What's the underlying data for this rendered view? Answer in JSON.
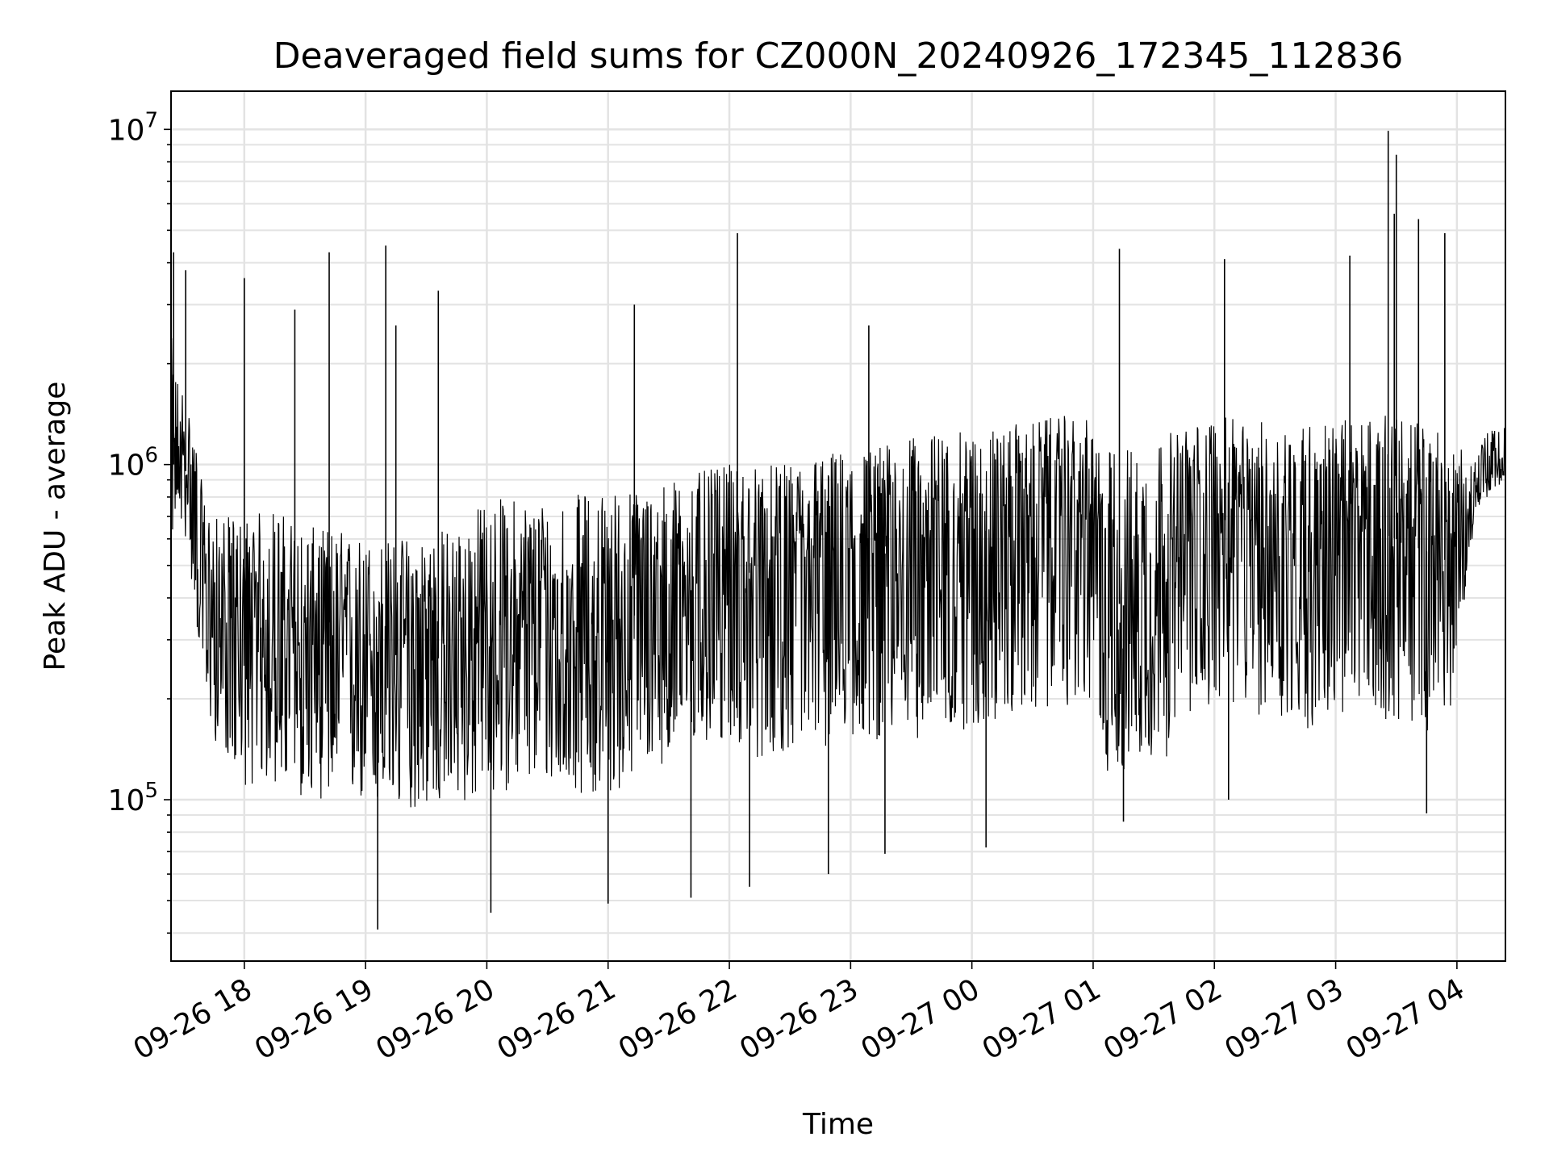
{
  "chart_data": {
    "type": "line",
    "title": "Deaveraged field sums for CZ000N_20240926_172345_112836",
    "xlabel": "Time",
    "ylabel": "Peak ADU - average",
    "xscale": "time",
    "yscale": "log",
    "grid": true,
    "grid_minor": true,
    "xlim": [
      "2024-09-26T17:23:45",
      "2024-09-27T04:24:00"
    ],
    "ylim": [
      33000,
      13000000
    ],
    "x_ticks": [
      "09-26 18",
      "09-26 19",
      "09-26 20",
      "09-26 21",
      "09-26 22",
      "09-26 23",
      "09-27 00",
      "09-27 01",
      "09-27 02",
      "09-27 03",
      "09-27 04"
    ],
    "y_ticks": [
      {
        "value": 100000,
        "base": "10",
        "exp": "5"
      },
      {
        "value": 1000000,
        "base": "10",
        "exp": "6"
      },
      {
        "value": 10000000,
        "base": "10",
        "exp": "7"
      }
    ],
    "line_color": "#000000",
    "series": [
      {
        "x": [
          "2024-09-26T17:23:45",
          "2024-09-26T17:25:00",
          "2024-09-26T17:30:00",
          "2024-09-26T17:35:00",
          "2024-09-26T17:40:00",
          "2024-09-26T17:45:00",
          "2024-09-26T17:50:00",
          "2024-09-26T18:00:00",
          "2024-09-26T18:15:00",
          "2024-09-26T18:30:00",
          "2024-09-26T18:45:00",
          "2024-09-26T19:00:00",
          "2024-09-26T19:15:00",
          "2024-09-26T19:30:00",
          "2024-09-26T19:45:00",
          "2024-09-26T20:00:00",
          "2024-09-26T20:15:00",
          "2024-09-26T20:30:00",
          "2024-09-26T20:45:00",
          "2024-09-26T21:00:00",
          "2024-09-26T21:15:00",
          "2024-09-26T21:30:00",
          "2024-09-26T21:45:00",
          "2024-09-26T22:00:00",
          "2024-09-26T22:15:00",
          "2024-09-26T22:30:00",
          "2024-09-26T22:45:00",
          "2024-09-26T23:00:00",
          "2024-09-26T23:15:00",
          "2024-09-26T23:30:00",
          "2024-09-26T23:45:00",
          "2024-09-27T00:00:00",
          "2024-09-27T00:15:00",
          "2024-09-27T00:30:00",
          "2024-09-27T00:45:00",
          "2024-09-27T01:00:00",
          "2024-09-27T01:05:00",
          "2024-09-27T01:15:00",
          "2024-09-27T01:30:00",
          "2024-09-27T01:45:00",
          "2024-09-27T02:00:00",
          "2024-09-27T02:15:00",
          "2024-09-27T02:30:00",
          "2024-09-27T02:45:00",
          "2024-09-27T03:00:00",
          "2024-09-27T03:15:00",
          "2024-09-27T03:30:00",
          "2024-09-27T03:45:00",
          "2024-09-27T04:00:00",
          "2024-09-27T04:05:00",
          "2024-09-27T04:10:00",
          "2024-09-27T04:15:00",
          "2024-09-27T04:24:00"
        ],
        "median": [
          900000,
          1000000,
          1000000,
          800000,
          400000,
          350000,
          330000,
          300000,
          310000,
          280000,
          290000,
          280000,
          270000,
          260000,
          270000,
          300000,
          330000,
          320000,
          310000,
          320000,
          360000,
          400000,
          430000,
          470000,
          450000,
          470000,
          480000,
          520000,
          540000,
          560000,
          600000,
          620000,
          650000,
          680000,
          720000,
          650000,
          400000,
          380000,
          420000,
          520000,
          700000,
          650000,
          620000,
          600000,
          620000,
          650000,
          600000,
          550000,
          500000,
          700000,
          850000,
          950000,
          1050000
        ],
        "low": [
          500000,
          700000,
          650000,
          400000,
          200000,
          150000,
          140000,
          110000,
          110000,
          100000,
          100000,
          95000,
          90000,
          95000,
          95000,
          100000,
          110000,
          110000,
          105000,
          100000,
          120000,
          130000,
          140000,
          150000,
          130000,
          140000,
          140000,
          150000,
          150000,
          150000,
          160000,
          160000,
          170000,
          180000,
          190000,
          190000,
          120000,
          120000,
          130000,
          140000,
          200000,
          180000,
          170000,
          160000,
          170000,
          180000,
          170000,
          160000,
          200000,
          500000,
          700000,
          800000,
          900000
        ],
        "high": [
          2500000,
          2000000,
          1700000,
          1300000,
          800000,
          700000,
          700000,
          700000,
          750000,
          650000,
          650000,
          600000,
          600000,
          650000,
          650000,
          800000,
          800000,
          800000,
          820000,
          850000,
          850000,
          900000,
          950000,
          1000000,
          1000000,
          1000000,
          1100000,
          1100000,
          1150000,
          1200000,
          1250000,
          1250000,
          1300000,
          1350000,
          1400000,
          1350000,
          1100000,
          1150000,
          1200000,
          1300000,
          1400000,
          1350000,
          1350000,
          1350000,
          1350000,
          1400000,
          1400000,
          1350000,
          1200000,
          1000000,
          1150000,
          1250000,
          1300000
        ]
      }
    ],
    "spikes": [
      {
        "x": "2024-09-26T17:25:00",
        "y": 4300000
      },
      {
        "x": "2024-09-26T17:31:00",
        "y": 3800000
      },
      {
        "x": "2024-09-26T18:00:00",
        "y": 3600000
      },
      {
        "x": "2024-09-26T18:25:00",
        "y": 2900000
      },
      {
        "x": "2024-09-26T18:42:00",
        "y": 4300000
      },
      {
        "x": "2024-09-26T19:10:00",
        "y": 4500000
      },
      {
        "x": "2024-09-26T19:15:00",
        "y": 2600000
      },
      {
        "x": "2024-09-26T19:36:00",
        "y": 3300000
      },
      {
        "x": "2024-09-26T21:13:00",
        "y": 3000000
      },
      {
        "x": "2024-09-26T22:04:00",
        "y": 4900000
      },
      {
        "x": "2024-09-26T23:09:00",
        "y": 2600000
      },
      {
        "x": "2024-09-27T01:13:00",
        "y": 4400000
      },
      {
        "x": "2024-09-27T02:05:00",
        "y": 4100000
      },
      {
        "x": "2024-09-27T03:07:00",
        "y": 4200000
      },
      {
        "x": "2024-09-27T03:26:00",
        "y": 9900000
      },
      {
        "x": "2024-09-27T03:30:00",
        "y": 8400000
      },
      {
        "x": "2024-09-27T03:29:00",
        "y": 5600000
      },
      {
        "x": "2024-09-27T03:41:00",
        "y": 5400000
      },
      {
        "x": "2024-09-27T03:54:00",
        "y": 4900000
      }
    ],
    "dips": [
      {
        "x": "2024-09-26T19:06:00",
        "y": 41000
      },
      {
        "x": "2024-09-26T20:02:00",
        "y": 46000
      },
      {
        "x": "2024-09-26T21:00:00",
        "y": 49000
      },
      {
        "x": "2024-09-26T21:41:00",
        "y": 51000
      },
      {
        "x": "2024-09-26T22:10:00",
        "y": 55000
      },
      {
        "x": "2024-09-26T22:49:00",
        "y": 60000
      },
      {
        "x": "2024-09-26T23:17:00",
        "y": 69000
      },
      {
        "x": "2024-09-27T00:07:00",
        "y": 72000
      },
      {
        "x": "2024-09-27T01:15:00",
        "y": 86000
      },
      {
        "x": "2024-09-27T02:07:00",
        "y": 100000
      },
      {
        "x": "2024-09-27T03:45:00",
        "y": 91000
      }
    ]
  }
}
